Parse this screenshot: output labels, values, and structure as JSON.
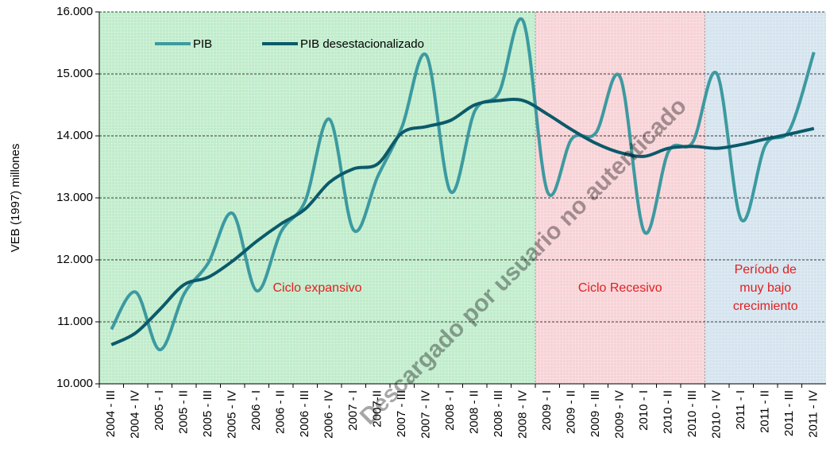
{
  "chart_data": {
    "type": "line",
    "y_label": "VEB (1997) millones",
    "watermark": "Descargado por usuario no autenticado",
    "categories": [
      "2004 - III",
      "2004 - IV",
      "2005 - I",
      "2005 - II",
      "2005 - III",
      "2005 - IV",
      "2006 - I",
      "2006 - II",
      "2006 - III",
      "2006 - IV",
      "2007 - I",
      "2007-II",
      "2007 - III",
      "2007 - IV",
      "2008 - I",
      "2008 - II",
      "2008 - III",
      "2008 - IV",
      "2009 - I",
      "2009 - II",
      "2009 - III",
      "2009 - IV",
      "2010 - I",
      "2010 - II",
      "2010 - III",
      "2010 - IV",
      "2011 - I",
      "2011 - II",
      "2011 - III",
      "2011 - IV"
    ],
    "series": [
      {
        "name": "PIB",
        "color": "#3c9aa0",
        "values": [
          10880,
          11480,
          10550,
          11450,
          11950,
          12750,
          11500,
          12450,
          12950,
          14270,
          12480,
          13350,
          14150,
          15300,
          13100,
          14400,
          14700,
          15850,
          13100,
          13950,
          14050,
          14950,
          12450,
          13750,
          13900,
          15000,
          12650,
          13850,
          14100,
          15350
        ]
      },
      {
        "name": "PIB desestacionalizado",
        "color": "#0b5a6a",
        "values": [
          10630,
          10820,
          11200,
          11600,
          11720,
          11980,
          12300,
          12580,
          12820,
          13250,
          13470,
          13550,
          14050,
          14150,
          14250,
          14500,
          14570,
          14570,
          14350,
          14100,
          13880,
          13730,
          13670,
          13800,
          13830,
          13800,
          13860,
          13950,
          14030,
          14120
        ]
      }
    ],
    "regions": [
      {
        "lines": [
          "Ciclo expansivo"
        ],
        "start": "2004 - III",
        "end": "2008 - IV",
        "color": "#bfeccb"
      },
      {
        "lines": [
          "Ciclo Recesivo"
        ],
        "start": "2009 - I",
        "end": "2010 - III",
        "color": "#f7d2d6"
      },
      {
        "lines": [
          "Período de",
          "muy bajo",
          "crecimiento"
        ],
        "start": "2010 - IV",
        "end": "2011 - IV",
        "color": "#d4e3ee"
      }
    ],
    "ylim": [
      10000,
      16000
    ],
    "yticks": [
      {
        "value": 10000,
        "label": "10.000"
      },
      {
        "value": 11000,
        "label": "11.000"
      },
      {
        "value": 12000,
        "label": "12.000"
      },
      {
        "value": 13000,
        "label": "13.000"
      },
      {
        "value": 14000,
        "label": "14.000"
      },
      {
        "value": 15000,
        "label": "15.000"
      },
      {
        "value": 16000,
        "label": "16.000"
      }
    ],
    "grid": true
  }
}
